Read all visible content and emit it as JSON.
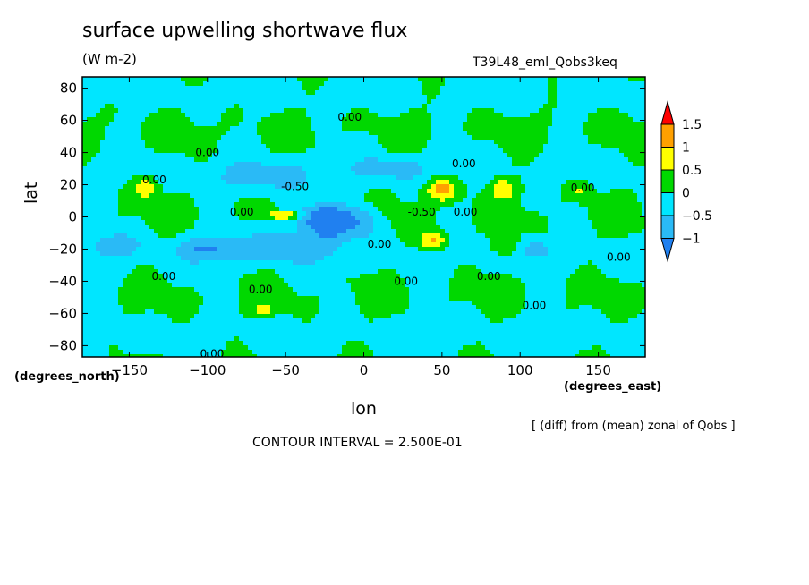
{
  "chart_data": {
    "type": "heatmap",
    "title": "surface upwelling shortwave flux",
    "units": "(W m-2)",
    "run_label": "T39L48_eml_Qobs3keq",
    "xlabel": "lon",
    "ylabel": "lat",
    "x_units": "(degrees_east)",
    "y_units": "(degrees_north)",
    "xlim": [
      -180,
      180
    ],
    "ylim": [
      -87,
      87
    ],
    "x_ticks": [
      -150,
      -100,
      -50,
      0,
      50,
      100,
      150
    ],
    "y_ticks": [
      -80,
      -60,
      -40,
      -20,
      0,
      20,
      40,
      60,
      80
    ],
    "x_tick_labels": [
      "−150",
      "−100",
      "−50",
      "0",
      "50",
      "100",
      "150"
    ],
    "y_tick_labels": [
      "−80",
      "−60",
      "−40",
      "−20",
      "0",
      "20",
      "40",
      "60",
      "80"
    ],
    "contour_interval": "CONTOUR INTERVAL = 2.500E-01",
    "note": "[ (diff) from (mean) zonal of Qobs ]",
    "colorbar": {
      "levels": [
        -1,
        -0.5,
        0,
        0.5,
        1,
        1.5
      ],
      "labels": [
        "−1",
        "−0.5",
        "0",
        "0.5",
        "1",
        "1.5"
      ],
      "colors": [
        "#2080f0",
        "#2abaf6",
        "#00e6ff",
        "#00d800",
        "#ffff00",
        "#ffa000",
        "#ff0000"
      ]
    },
    "contour_labels": [
      {
        "text": "0.00",
        "x": -9,
        "y": 62
      },
      {
        "text": "0.00",
        "x": -100,
        "y": 40
      },
      {
        "text": "0.00",
        "x": 64,
        "y": 33
      },
      {
        "text": "0.00",
        "x": -134,
        "y": 23
      },
      {
        "text": "-0.50",
        "x": -44,
        "y": 19
      },
      {
        "text": "0.00",
        "x": 140,
        "y": 18
      },
      {
        "text": "0.00",
        "x": -78,
        "y": 3
      },
      {
        "text": "-0.50",
        "x": 37,
        "y": 3
      },
      {
        "text": "0.00",
        "x": 65,
        "y": 3
      },
      {
        "text": "0.00",
        "x": 10,
        "y": -17
      },
      {
        "text": "0.00",
        "x": 163,
        "y": -25
      },
      {
        "text": "0.00",
        "x": -128,
        "y": -37
      },
      {
        "text": "0.00",
        "x": 27,
        "y": -40
      },
      {
        "text": "0.00",
        "x": 80,
        "y": -37
      },
      {
        "text": "0.00",
        "x": -66,
        "y": -45
      },
      {
        "text": "0.00",
        "x": 109,
        "y": -55
      },
      {
        "text": "0.00",
        "x": -97,
        "y": -85
      }
    ],
    "features": [
      {
        "lon": -30,
        "lat": 0,
        "value": -1.2,
        "sx": 22,
        "sy": 8
      },
      {
        "lon": -50,
        "lat": 1,
        "value": 1.4,
        "sx": 12,
        "sy": 2.5
      },
      {
        "lon": -20,
        "lat": -5,
        "value": -1.0,
        "sx": 10,
        "sy": 8
      },
      {
        "lon": -45,
        "lat": -18,
        "value": -0.9,
        "sx": 30,
        "sy": 10
      },
      {
        "lon": -100,
        "lat": -20,
        "value": -0.9,
        "sx": 20,
        "sy": 8
      },
      {
        "lon": -160,
        "lat": -18,
        "value": -0.8,
        "sx": 15,
        "sy": 7
      },
      {
        "lon": -60,
        "lat": 25,
        "value": -0.6,
        "sx": 35,
        "sy": 10
      },
      {
        "lon": 20,
        "lat": 30,
        "value": -0.7,
        "sx": 22,
        "sy": 7
      },
      {
        "lon": 50,
        "lat": 17,
        "value": 1.3,
        "sx": 10,
        "sy": 7
      },
      {
        "lon": 45,
        "lat": -15,
        "value": 1.2,
        "sx": 8,
        "sy": 6
      },
      {
        "lon": 90,
        "lat": 18,
        "value": 0.9,
        "sx": 9,
        "sy": 6
      },
      {
        "lon": -140,
        "lat": 18,
        "value": 1.0,
        "sx": 8,
        "sy": 6
      },
      {
        "lon": 90,
        "lat": -18,
        "value": 0.7,
        "sx": 8,
        "sy": 6
      },
      {
        "lon": -65,
        "lat": -58,
        "value": 0.8,
        "sx": 6,
        "sy": 4
      },
      {
        "lon": 138,
        "lat": 17,
        "value": 0.6,
        "sx": 8,
        "sy": 5
      },
      {
        "lon": 110,
        "lat": -20,
        "value": -0.7,
        "sx": 10,
        "sy": 6
      },
      {
        "lon": 0,
        "lat": -3,
        "value": -0.8,
        "sx": 12,
        "sy": 10
      }
    ]
  }
}
